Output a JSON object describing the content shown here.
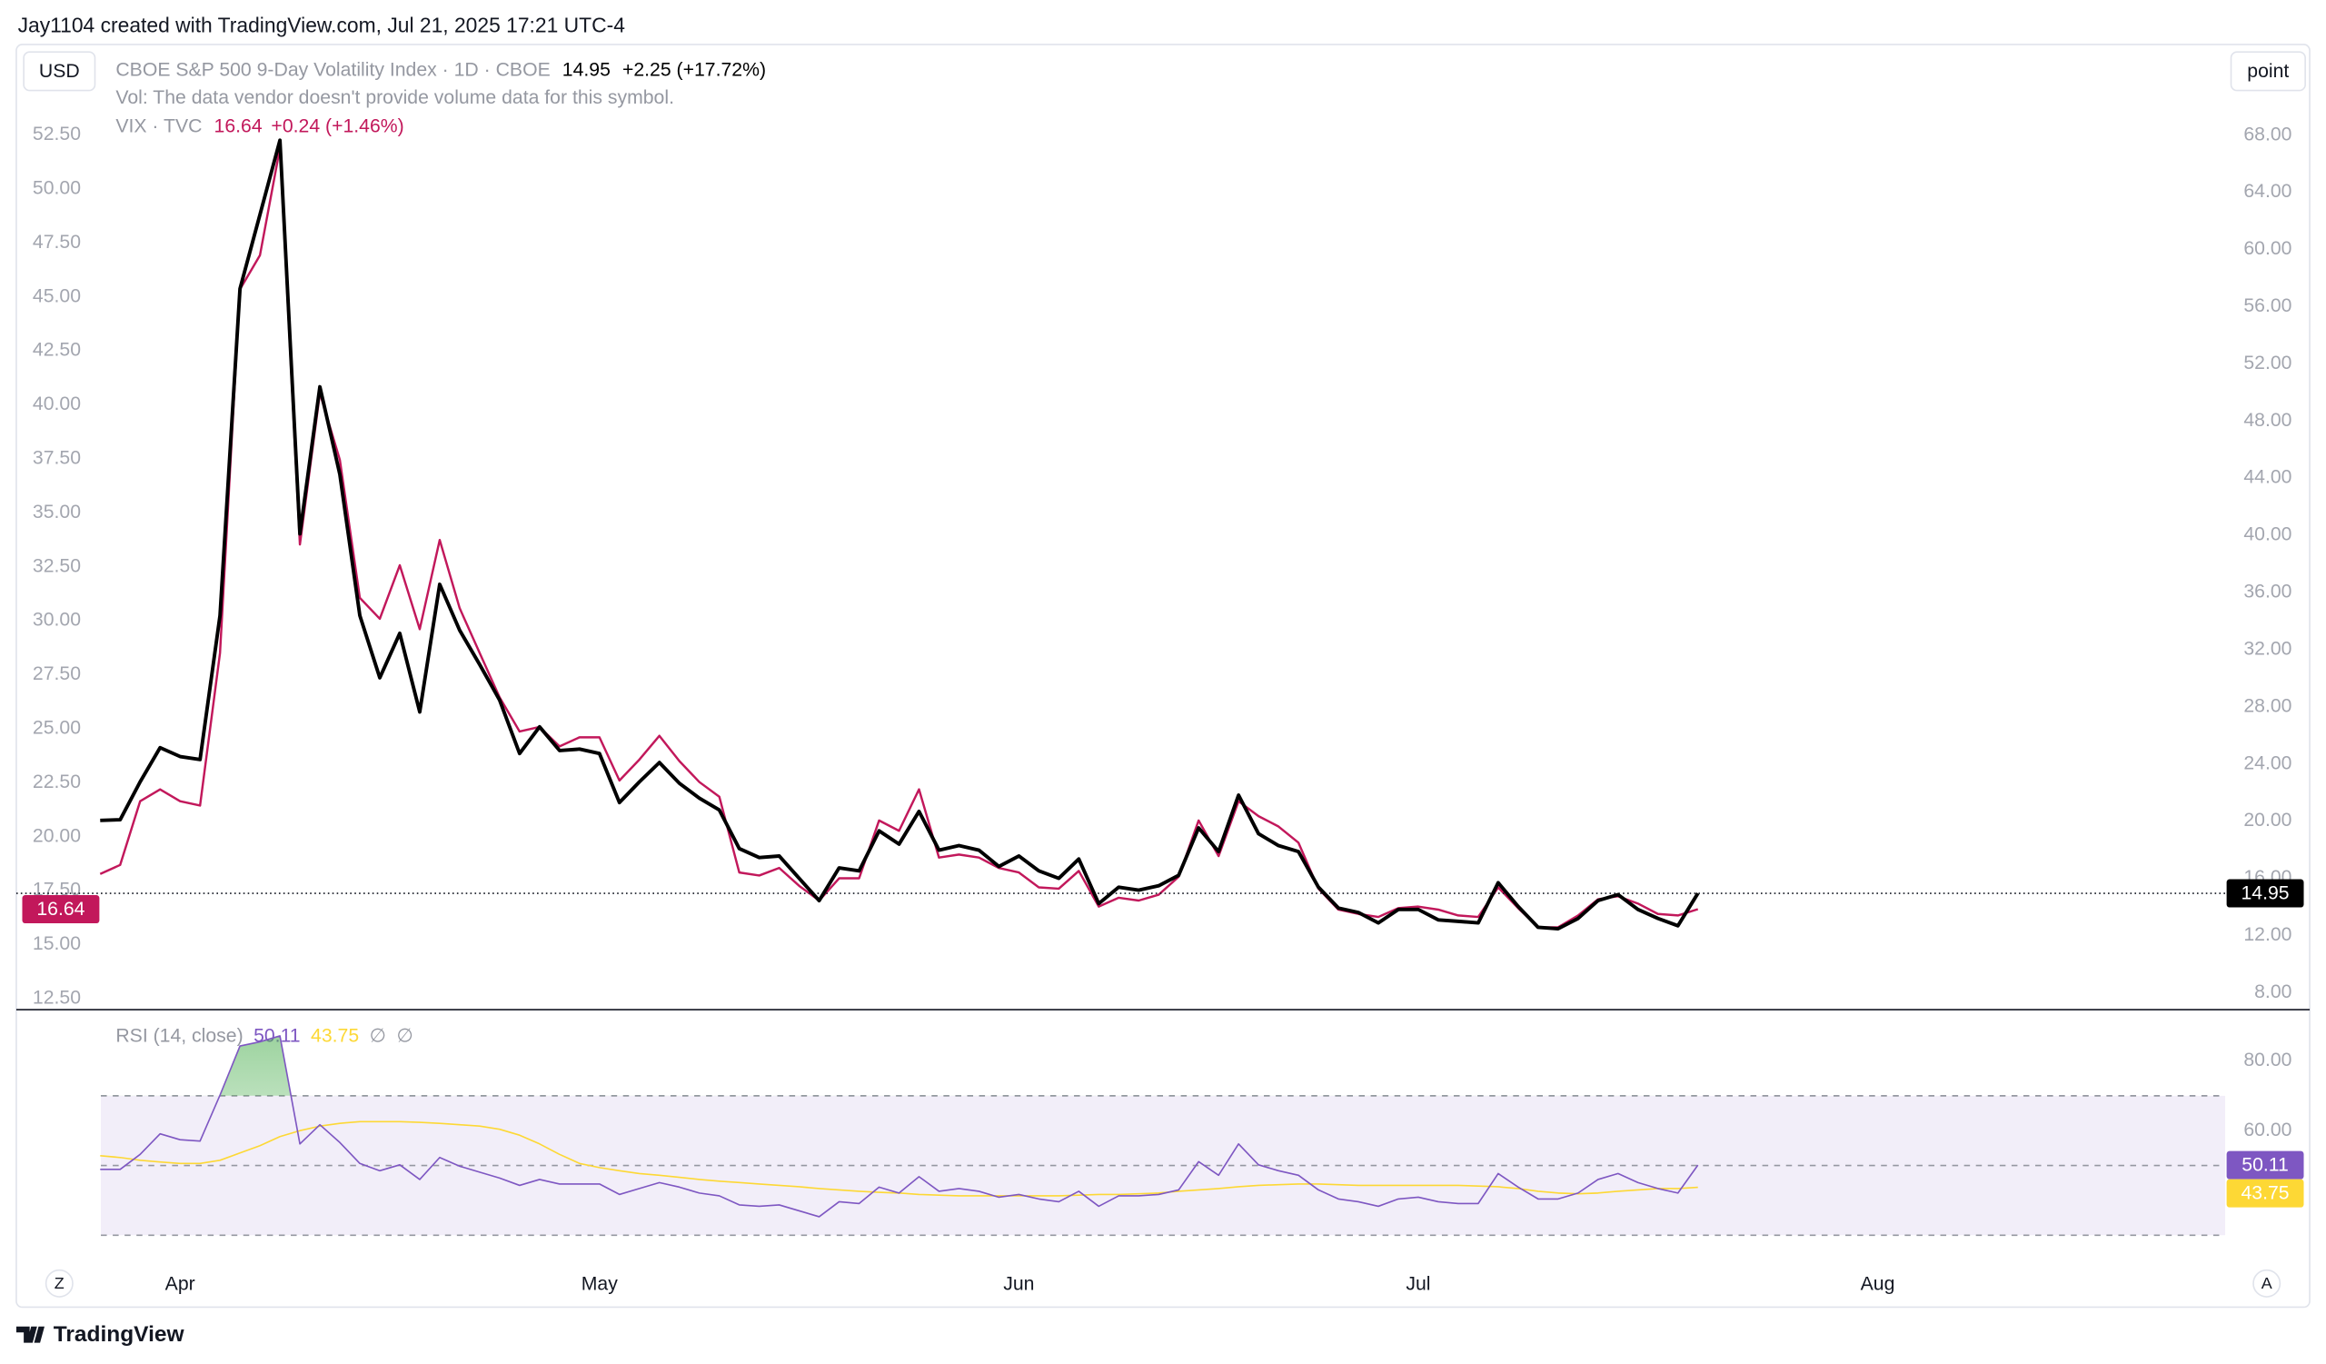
{
  "header": {
    "credit": "Jay1104 created with TradingView.com, Jul 21, 2025 17:21 UTC-4"
  },
  "toolbar": {
    "currency": "USD",
    "scale": "point",
    "left_button": "Z",
    "right_button": "A"
  },
  "footer": {
    "brand": "TradingView"
  },
  "chart_data": [
    {
      "type": "line",
      "volume_note": "Vol: The data vendor doesn't provide volume data for this symbol.",
      "xlim": [
        -4.2,
        106.4
      ],
      "ylim": [
        12.02,
        56.55
      ],
      "yticks": [
        {
          "value": 12.5,
          "label": "12.50"
        },
        {
          "value": 15,
          "label": "15.00"
        },
        {
          "value": 17.5,
          "label": "17.50"
        },
        {
          "value": 20,
          "label": "20.00"
        },
        {
          "value": 22.5,
          "label": "22.50"
        },
        {
          "value": 25,
          "label": "25.00"
        },
        {
          "value": 27.5,
          "label": "27.50"
        },
        {
          "value": 30,
          "label": "30.00"
        },
        {
          "value": 32.5,
          "label": "32.50"
        },
        {
          "value": 35,
          "label": "35.00"
        },
        {
          "value": 37.5,
          "label": "37.50"
        },
        {
          "value": 40,
          "label": "40.00"
        },
        {
          "value": 42.5,
          "label": "42.50"
        },
        {
          "value": 45,
          "label": "45.00"
        },
        {
          "value": 47.5,
          "label": "47.50"
        },
        {
          "value": 50,
          "label": "50.00"
        },
        {
          "value": 52.5,
          "label": "52.50"
        }
      ],
      "y2lim": [
        6.86,
        74.13
      ],
      "y2ticks": [
        {
          "value": 8,
          "label": "8.00"
        },
        {
          "value": 12,
          "label": "12.00"
        },
        {
          "value": 16,
          "label": "16.00"
        },
        {
          "value": 20,
          "label": "20.00"
        },
        {
          "value": 24,
          "label": "24.00"
        },
        {
          "value": 28,
          "label": "28.00"
        },
        {
          "value": 32,
          "label": "32.00"
        },
        {
          "value": 36,
          "label": "36.00"
        },
        {
          "value": 40,
          "label": "40.00"
        },
        {
          "value": 44,
          "label": "44.00"
        },
        {
          "value": 48,
          "label": "48.00"
        },
        {
          "value": 52,
          "label": "52.00"
        },
        {
          "value": 56,
          "label": "56.00"
        },
        {
          "value": 60,
          "label": "60.00"
        },
        {
          "value": 64,
          "label": "64.00"
        },
        {
          "value": 68,
          "label": "68.00"
        }
      ],
      "series": [
        {
          "name": "CBOE S&P 500 9-Day Volatility Index · 1D · CBOE",
          "axis": "y2",
          "color": "#000000",
          "change": "+2.25 (+17.72%)",
          "values": [
            20.05,
            20.1,
            22.75,
            25.14,
            24.52,
            24.31,
            34.39,
            57.25,
            62.44,
            67.64,
            40.1,
            50.39,
            44.26,
            34.39,
            30.03,
            33.14,
            27.64,
            36.57,
            33.35,
            30.96,
            28.47,
            24.73,
            26.6,
            24.94,
            25.04,
            24.73,
            21.3,
            22.75,
            24.1,
            22.65,
            21.61,
            20.78,
            18.08,
            17.45,
            17.56,
            16.0,
            14.44,
            16.73,
            16.52,
            19.32,
            18.39,
            20.68,
            17.97,
            18.29,
            17.97,
            16.83,
            17.56,
            16.52,
            16.0,
            17.35,
            14.23,
            15.38,
            15.17,
            15.48,
            16.21,
            19.53,
            17.87,
            21.82,
            19.12,
            18.29,
            17.87,
            15.38,
            13.92,
            13.61,
            12.88,
            13.82,
            13.82,
            13.09,
            12.99,
            12.88,
            15.69,
            14.03,
            12.57,
            12.47,
            13.19,
            14.44,
            14.86,
            13.82,
            13.19,
            12.68,
            14.95
          ]
        },
        {
          "name": "VIX · TVC",
          "axis": "y",
          "color": "#c2185b",
          "change": "+0.24 (+1.46%)",
          "values": [
            18.27,
            18.69,
            21.64,
            22.19,
            21.64,
            21.44,
            28.51,
            45.35,
            46.93,
            51.89,
            33.53,
            40.54,
            37.45,
            31.06,
            30.09,
            32.57,
            29.61,
            33.74,
            30.58,
            28.51,
            26.45,
            24.87,
            25.08,
            24.18,
            24.6,
            24.6,
            22.6,
            23.57,
            24.67,
            23.5,
            22.53,
            21.85,
            18.34,
            18.2,
            18.55,
            17.72,
            17.04,
            18.07,
            18.07,
            20.75,
            20.27,
            22.19,
            19.03,
            19.17,
            19.03,
            18.55,
            18.34,
            17.65,
            17.59,
            18.41,
            16.76,
            17.17,
            17.04,
            17.31,
            18.14,
            20.75,
            19.1,
            21.64,
            20.95,
            20.47,
            19.72,
            17.59,
            16.62,
            16.42,
            16.28,
            16.69,
            16.76,
            16.62,
            16.35,
            16.28,
            17.65,
            16.69,
            15.8,
            15.8,
            16.35,
            17.1,
            17.24,
            16.9,
            16.42,
            16.35,
            16.64
          ]
        }
      ]
    },
    {
      "type": "line",
      "title": "RSI (14, close)",
      "legend_symbols": [
        "∅",
        "∅"
      ],
      "xlim": [
        -4.2,
        106.4
      ],
      "xticks": [
        {
          "value": 4,
          "label": "Apr"
        },
        {
          "value": 25,
          "label": "May"
        },
        {
          "value": 46,
          "label": "Jun"
        },
        {
          "value": 66,
          "label": "Jul"
        },
        {
          "value": 89,
          "label": "Aug"
        }
      ],
      "ylim": [
        22.55,
        94.5
      ],
      "yticks": [
        {
          "value": 60,
          "label": "60.00"
        },
        {
          "value": 80,
          "label": "80.00"
        }
      ],
      "levels": [
        70,
        50,
        30
      ],
      "band_color": "#7e57c2",
      "overbought_color": "#4caf50",
      "series": [
        {
          "color": "#7e57c2",
          "values": [
            48.9,
            48.9,
            53.2,
            59.1,
            57.4,
            57.0,
            70.2,
            84.3,
            85.5,
            87.2,
            56.2,
            61.7,
            56.6,
            50.6,
            48.5,
            50.2,
            46.0,
            52.3,
            49.8,
            48.1,
            46.4,
            44.3,
            46.0,
            44.7,
            44.7,
            44.7,
            41.7,
            43.4,
            45.1,
            43.8,
            42.1,
            41.3,
            38.7,
            38.3,
            38.7,
            37.0,
            35.3,
            39.6,
            39.1,
            43.8,
            42.1,
            46.8,
            42.6,
            43.4,
            42.6,
            40.9,
            41.7,
            40.4,
            39.6,
            42.6,
            38.3,
            41.3,
            41.3,
            41.7,
            43.0,
            51.1,
            47.2,
            56.2,
            50.2,
            48.5,
            47.2,
            43.0,
            40.4,
            39.6,
            38.3,
            40.4,
            40.9,
            39.6,
            39.1,
            39.1,
            47.7,
            43.8,
            40.4,
            40.4,
            42.1,
            46.0,
            47.7,
            45.1,
            43.4,
            42.1,
            50.11
          ]
        },
        {
          "color": "#fdd835",
          "values": [
            52.8,
            52.3,
            51.5,
            51.0,
            50.6,
            50.6,
            51.5,
            53.6,
            55.7,
            58.3,
            60.0,
            61.3,
            62.1,
            62.6,
            62.6,
            62.6,
            62.4,
            62.1,
            61.7,
            61.3,
            60.4,
            58.7,
            56.2,
            53.2,
            50.6,
            49.4,
            48.5,
            47.7,
            47.2,
            46.6,
            46.0,
            45.5,
            45.1,
            44.7,
            44.3,
            43.9,
            43.4,
            43.0,
            42.6,
            42.3,
            42.1,
            41.7,
            41.5,
            41.3,
            41.3,
            41.3,
            41.3,
            41.3,
            41.3,
            41.5,
            41.7,
            41.7,
            41.9,
            42.1,
            42.6,
            43.0,
            43.4,
            43.9,
            44.3,
            44.5,
            44.7,
            44.7,
            44.5,
            44.3,
            44.3,
            44.3,
            44.3,
            44.3,
            44.3,
            44.1,
            43.9,
            43.4,
            42.6,
            42.1,
            41.9,
            42.1,
            42.6,
            43.0,
            43.4,
            43.4,
            43.75
          ]
        }
      ]
    }
  ]
}
